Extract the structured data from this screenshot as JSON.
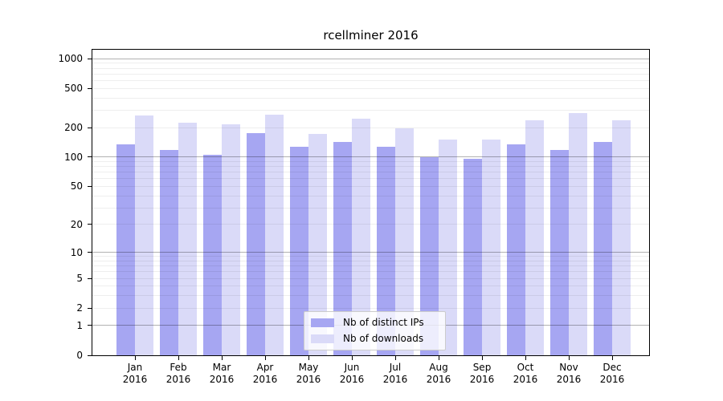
{
  "chart_data": {
    "type": "bar",
    "title": "rcellminer 2016",
    "categories": [
      "Jan 2016",
      "Feb 2016",
      "Mar 2016",
      "Apr 2016",
      "May 2016",
      "Jun 2016",
      "Jul 2016",
      "Aug 2016",
      "Sep 2016",
      "Oct 2016",
      "Nov 2016",
      "Dec 2016"
    ],
    "series": [
      {
        "name": "Nb of distinct IPs",
        "color": "#a6a6f2",
        "values": [
          136,
          118,
          105,
          176,
          128,
          143,
          128,
          100,
          96,
          135,
          118,
          143
        ]
      },
      {
        "name": "Nb of downloads",
        "color": "#dadaf8",
        "values": [
          265,
          225,
          214,
          272,
          172,
          247,
          196,
          152,
          150,
          237,
          282,
          239
        ]
      }
    ],
    "y_scale": "log1p",
    "y_ticks": [
      0,
      1,
      2,
      5,
      10,
      20,
      50,
      100,
      200,
      500,
      1000
    ],
    "y_minor_gridlines": [
      2,
      3,
      4,
      5,
      6,
      7,
      8,
      9,
      20,
      30,
      40,
      50,
      60,
      70,
      80,
      90,
      200,
      300,
      400,
      500,
      600,
      700,
      800,
      900
    ],
    "y_major_gridlines": [
      1,
      10,
      100,
      1000
    ],
    "ylim": [
      0,
      1230
    ],
    "grid": "on",
    "legend_position": "inside-bottom-center"
  }
}
